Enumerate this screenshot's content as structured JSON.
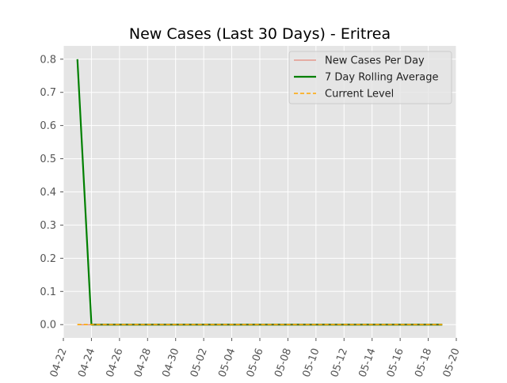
{
  "chart_data": {
    "type": "line",
    "title": "New Cases (Last 30 Days) - Eritrea",
    "xlabel": "",
    "ylabel": "",
    "x_axis": {
      "type": "date",
      "range": [
        "2020-04-22",
        "2020-05-20"
      ],
      "tick_dates": [
        "2020-04-22",
        "2020-04-24",
        "2020-04-26",
        "2020-04-28",
        "2020-04-30",
        "2020-05-02",
        "2020-05-04",
        "2020-05-06",
        "2020-05-08",
        "2020-05-10",
        "2020-05-12",
        "2020-05-14",
        "2020-05-16",
        "2020-05-18",
        "2020-05-20"
      ],
      "tick_labels": [
        "04-22",
        "04-24",
        "04-26",
        "04-28",
        "04-30",
        "05-02",
        "05-04",
        "05-06",
        "05-08",
        "05-10",
        "05-12",
        "05-14",
        "05-16",
        "05-18",
        "05-20"
      ]
    },
    "y_axis": {
      "range": [
        -0.04,
        0.84
      ],
      "ticks": [
        0.0,
        0.1,
        0.2,
        0.3,
        0.4,
        0.5,
        0.6,
        0.7,
        0.8
      ],
      "tick_labels": [
        "0.0",
        "0.1",
        "0.2",
        "0.3",
        "0.4",
        "0.5",
        "0.6",
        "0.7",
        "0.8"
      ]
    },
    "grid": true,
    "legend_position": "top-right",
    "series": [
      {
        "name": "New Cases Per Day",
        "style": "solid-thin",
        "color": "#E24A33",
        "x": [
          "2020-04-23",
          "2020-05-19"
        ],
        "y": [
          0,
          0
        ]
      },
      {
        "name": "7 Day Rolling Average",
        "style": "solid-thick",
        "color": "#008000",
        "x": [
          "2020-04-23",
          "2020-04-24",
          "2020-05-19"
        ],
        "y": [
          0.8,
          0,
          0
        ]
      },
      {
        "name": "Current Level",
        "style": "dashed",
        "color": "#FFA500",
        "x": [
          "2020-04-23",
          "2020-05-19"
        ],
        "y": [
          0,
          0
        ]
      }
    ]
  }
}
